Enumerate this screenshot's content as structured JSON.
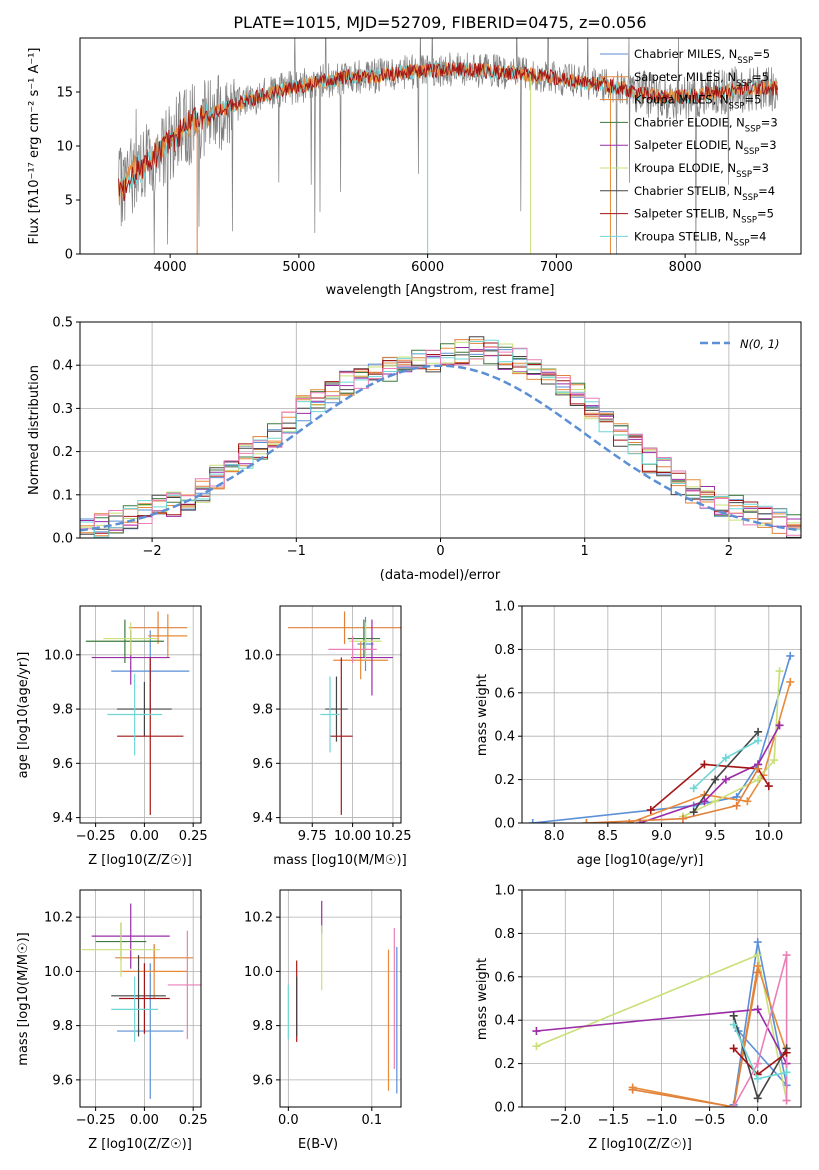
{
  "colors": {
    "Chabrier MILES": "#5b8fd6",
    "Salpeter MILES": "#e78b3a",
    "Kroupa MILES": "#e0803a",
    "Chabrier ELODIE": "#3d7a3d",
    "Salpeter ELODIE": "#9a2ca8",
    "Kroupa ELODIE": "#c9e079",
    "Chabrier STELIB": "#444444",
    "Salpeter STELIB": "#a31515",
    "Kroupa STELIB": "#6fd6d6",
    "data": "#808080",
    "gauss": "#5b8fd6",
    "pink": "#ea7fb8"
  },
  "chart_data": [
    {
      "id": "spectrum",
      "type": "line",
      "title": "PLATE=1015, MJD=52709, FIBERID=0475, z=0.056",
      "xlabel": "wavelength [Angstrom, rest frame]",
      "ylabel": "Flux [fλ10⁻¹⁷ erg cm⁻² s⁻¹ A⁻¹]",
      "xlim": [
        3300,
        8900
      ],
      "ylim": [
        0,
        20
      ],
      "xticks": [
        4000,
        5000,
        6000,
        7000,
        8000
      ],
      "yticks": [
        0,
        5,
        10,
        15
      ],
      "xticklabels": [
        "4000",
        "5000",
        "6000",
        "7000",
        "8000"
      ],
      "yticklabels": [
        "0",
        "5",
        "10",
        "15"
      ],
      "continuum": [
        [
          3600,
          5.8
        ],
        [
          3700,
          7.5
        ],
        [
          3800,
          8.2
        ],
        [
          3900,
          9.2
        ],
        [
          4000,
          10.5
        ],
        [
          4100,
          11.6
        ],
        [
          4200,
          12.4
        ],
        [
          4300,
          12.8
        ],
        [
          4400,
          13.4
        ],
        [
          4500,
          13.8
        ],
        [
          4600,
          14.3
        ],
        [
          4700,
          14.6
        ],
        [
          4800,
          15.0
        ],
        [
          4900,
          15.3
        ],
        [
          5000,
          15.5
        ],
        [
          5200,
          16.0
        ],
        [
          5400,
          16.4
        ],
        [
          5600,
          16.5
        ],
        [
          5800,
          16.8
        ],
        [
          6000,
          17.0
        ],
        [
          6200,
          17.1
        ],
        [
          6400,
          17.0
        ],
        [
          6600,
          16.8
        ],
        [
          6800,
          16.6
        ],
        [
          7000,
          16.3
        ],
        [
          7200,
          15.9
        ],
        [
          7400,
          15.6
        ],
        [
          7600,
          15.1
        ],
        [
          7800,
          14.5
        ],
        [
          8000,
          14.6
        ],
        [
          8200,
          14.9
        ],
        [
          8400,
          15.2
        ],
        [
          8600,
          15.4
        ],
        [
          8720,
          15.3
        ]
      ],
      "legend": [
        {
          "name": "Chabrier MILES",
          "suffix": "5"
        },
        {
          "name": "Salpeter MILES",
          "suffix": "5"
        },
        {
          "name": "Kroupa MILES",
          "suffix": "5"
        },
        {
          "name": "Chabrier ELODIE",
          "suffix": "3"
        },
        {
          "name": "Salpeter ELODIE",
          "suffix": "3"
        },
        {
          "name": "Kroupa ELODIE",
          "suffix": "3"
        },
        {
          "name": "Chabrier STELIB",
          "suffix": "4"
        },
        {
          "name": "Salpeter STELIB",
          "suffix": "5"
        },
        {
          "name": "Kroupa STELIB",
          "suffix": "4"
        }
      ]
    },
    {
      "id": "residuals",
      "type": "line",
      "xlabel": "(data-model)/error",
      "ylabel": "Normed distribution",
      "xlim": [
        -2.5,
        2.5
      ],
      "ylim": [
        0,
        0.5
      ],
      "xticks": [
        -2,
        -1,
        0,
        1,
        2
      ],
      "yticks": [
        0.0,
        0.1,
        0.2,
        0.3,
        0.4,
        0.5
      ],
      "xticklabels": [
        "−2",
        "−1",
        "0",
        "1",
        "2"
      ],
      "yticklabels": [
        "0.0",
        "0.1",
        "0.2",
        "0.3",
        "0.4",
        "0.5"
      ],
      "gauss_label": "N(0, 1)",
      "bin_width": 0.1,
      "bins_x0": -2.5,
      "hist": [
        0.02,
        0.03,
        0.04,
        0.05,
        0.06,
        0.07,
        0.08,
        0.09,
        0.11,
        0.14,
        0.16,
        0.19,
        0.21,
        0.24,
        0.27,
        0.3,
        0.32,
        0.34,
        0.36,
        0.37,
        0.38,
        0.39,
        0.4,
        0.41,
        0.41,
        0.42,
        0.43,
        0.44,
        0.43,
        0.42,
        0.41,
        0.39,
        0.37,
        0.35,
        0.33,
        0.3,
        0.27,
        0.24,
        0.21,
        0.18,
        0.16,
        0.13,
        0.11,
        0.09,
        0.08,
        0.07,
        0.06,
        0.05,
        0.04,
        0.03
      ]
    },
    {
      "id": "age-metal",
      "type": "scatter",
      "xlabel": "Z [log10(Z/Z☉)]",
      "ylabel": "age [log10(age/yr)]",
      "xlim": [
        -0.33,
        0.29
      ],
      "ylim": [
        9.38,
        10.18
      ],
      "xticks": [
        -0.25,
        0.0,
        0.25
      ],
      "yticks": [
        9.4,
        9.6,
        9.8,
        10.0
      ],
      "xticklabels": [
        "−0.25",
        "0.00",
        "0.25"
      ],
      "yticklabels": [
        "9.4",
        "9.6",
        "9.8",
        "10.0"
      ],
      "points": [
        {
          "c": "Chabrier MILES",
          "x": 0.03,
          "xe": 0.2,
          "y": 9.94,
          "ye": 0.15
        },
        {
          "c": "Salpeter MILES",
          "x": 0.12,
          "xe": 0.1,
          "y": 10.07,
          "ye": 0.08
        },
        {
          "c": "Kroupa MILES",
          "x": 0.07,
          "xe": 0.15,
          "y": 10.1,
          "ye": 0.06
        },
        {
          "c": "Chabrier ELODIE",
          "x": -0.1,
          "xe": 0.2,
          "y": 10.05,
          "ye": 0.08
        },
        {
          "c": "Salpeter ELODIE",
          "x": -0.07,
          "xe": 0.2,
          "y": 9.99,
          "ye": 0.1
        },
        {
          "c": "Kroupa ELODIE",
          "x": -0.07,
          "xe": 0.14,
          "y": 10.06,
          "ye": 0.06
        },
        {
          "c": "Chabrier STELIB",
          "x": 0.0,
          "xe": 0.14,
          "y": 9.8,
          "ye": 0.1
        },
        {
          "c": "Salpeter STELIB",
          "x": 0.03,
          "xe": 0.17,
          "y": 9.7,
          "ye": 0.29
        },
        {
          "c": "Kroupa STELIB",
          "x": -0.05,
          "xe": 0.14,
          "y": 9.78,
          "ye": 0.15
        }
      ]
    },
    {
      "id": "age-mass",
      "type": "scatter",
      "xlabel": "mass [log10(M/M☉)]",
      "ylabel": "",
      "xlim": [
        9.55,
        10.3
      ],
      "ylim": [
        9.38,
        10.18
      ],
      "xticks": [
        9.75,
        10.0,
        10.25
      ],
      "yticks": [
        9.4,
        9.6,
        9.8,
        10.0
      ],
      "xticklabels": [
        "9.75",
        "10.00",
        "10.25"
      ],
      "yticklabels": [
        "9.4",
        "9.6",
        "9.8",
        "10.0"
      ],
      "points": [
        {
          "c": "Chabrier MILES",
          "x": 10.08,
          "xe": 0.05,
          "y": 10.04,
          "ye": 0.1
        },
        {
          "c": "Salpeter MILES",
          "x": 10.05,
          "xe": 0.17,
          "y": 9.98,
          "ye": 0.07
        },
        {
          "c": "Kroupa MILES",
          "x": 9.95,
          "xe": 0.35,
          "y": 10.1,
          "ye": 0.06
        },
        {
          "c": "Chabrier ELODIE",
          "x": 10.07,
          "xe": 0.1,
          "y": 10.06,
          "ye": 0.07
        },
        {
          "c": "Salpeter ELODIE",
          "x": 10.12,
          "xe": 0.13,
          "y": 9.99,
          "ye": 0.14
        },
        {
          "c": "Kroupa ELODIE",
          "x": 10.08,
          "xe": 0.1,
          "y": 10.05,
          "ye": 0.07
        },
        {
          "c": "Chabrier STELIB",
          "x": 9.9,
          "xe": 0.07,
          "y": 9.8,
          "ye": 0.12
        },
        {
          "c": "Salpeter STELIB",
          "x": 9.93,
          "xe": 0.07,
          "y": 9.7,
          "ye": 0.29
        },
        {
          "c": "Kroupa STELIB",
          "x": 9.86,
          "xe": 0.06,
          "y": 9.78,
          "ye": 0.14
        },
        {
          "c": "pink",
          "x": 10.0,
          "xe": 0.15,
          "y": 10.02,
          "ye": 0.05
        }
      ]
    },
    {
      "id": "mw-age",
      "type": "line",
      "xlabel": "age [log10(age/yr)]",
      "ylabel": "mass weight",
      "xlim": [
        7.7,
        10.3
      ],
      "ylim": [
        0.0,
        1.0
      ],
      "xticks": [
        8.0,
        8.5,
        9.0,
        9.5,
        10.0
      ],
      "yticks": [
        0.0,
        0.2,
        0.4,
        0.6,
        0.8,
        1.0
      ],
      "xticklabels": [
        "8.0",
        "8.5",
        "9.0",
        "9.5",
        "10.0"
      ],
      "yticklabels": [
        "0.0",
        "0.2",
        "0.4",
        "0.6",
        "0.8",
        "1.0"
      ],
      "series": [
        {
          "c": "Chabrier MILES",
          "x": [
            7.8,
            9.3,
            9.7,
            9.9,
            10.2
          ],
          "y": [
            0.0,
            0.08,
            0.12,
            0.27,
            0.77
          ]
        },
        {
          "c": "Salpeter MILES",
          "x": [
            8.7,
            9.4,
            9.8,
            9.95,
            10.2
          ],
          "y": [
            0.0,
            0.13,
            0.1,
            0.22,
            0.65
          ]
        },
        {
          "c": "Kroupa ELODIE",
          "x": [
            9.2,
            9.5,
            9.9,
            10.05,
            10.1
          ],
          "y": [
            0.03,
            0.1,
            0.2,
            0.29,
            0.7
          ]
        },
        {
          "c": "Salpeter ELODIE",
          "x": [
            8.8,
            9.4,
            9.6,
            9.9,
            10.1
          ],
          "y": [
            0.0,
            0.1,
            0.2,
            0.27,
            0.45
          ]
        },
        {
          "c": "Salpeter STELIB",
          "x": [
            8.9,
            9.4,
            9.9,
            10.0
          ],
          "y": [
            0.06,
            0.27,
            0.25,
            0.17
          ]
        },
        {
          "c": "Chabrier STELIB",
          "x": [
            9.3,
            9.5,
            9.9
          ],
          "y": [
            0.05,
            0.2,
            0.42
          ]
        },
        {
          "c": "Kroupa STELIB",
          "x": [
            9.3,
            9.6,
            9.9
          ],
          "y": [
            0.16,
            0.3,
            0.38
          ]
        },
        {
          "c": "Kroupa MILES",
          "x": [
            8.3,
            9.2,
            9.7,
            9.9
          ],
          "y": [
            0.0,
            0.02,
            0.08,
            0.25
          ]
        }
      ]
    },
    {
      "id": "mass-metal",
      "type": "scatter",
      "xlabel": "Z [log10(Z/Z☉)]",
      "ylabel": "mass [log10(M/M☉)]",
      "xlim": [
        -0.33,
        0.29
      ],
      "ylim": [
        9.5,
        10.3
      ],
      "xticks": [
        -0.25,
        0.0,
        0.25
      ],
      "yticks": [
        9.6,
        9.8,
        10.0,
        10.2
      ],
      "xticklabels": [
        "−0.25",
        "0.00",
        "0.25"
      ],
      "yticklabels": [
        "9.6",
        "9.8",
        "10.0",
        "10.2"
      ],
      "points": [
        {
          "c": "Chabrier MILES",
          "x": 0.03,
          "xe": 0.17,
          "y": 9.78,
          "ye": 0.25
        },
        {
          "c": "Salpeter MILES",
          "x": 0.05,
          "xe": 0.17,
          "y": 10.0,
          "ye": 0.1
        },
        {
          "c": "Kroupa MILES",
          "x": 0.05,
          "xe": 0.2,
          "y": 10.05,
          "ye": 0.05
        },
        {
          "c": "Chabrier ELODIE",
          "x": -0.12,
          "xe": 0.13,
          "y": 10.11,
          "ye": 0.07
        },
        {
          "c": "Salpeter ELODIE",
          "x": -0.07,
          "xe": 0.2,
          "y": 10.13,
          "ye": 0.12
        },
        {
          "c": "Kroupa ELODIE",
          "x": -0.12,
          "xe": 0.2,
          "y": 10.08,
          "ye": 0.1
        },
        {
          "c": "Chabrier STELIB",
          "x": -0.03,
          "xe": 0.14,
          "y": 9.91,
          "ye": 0.15
        },
        {
          "c": "Salpeter STELIB",
          "x": 0.0,
          "xe": 0.13,
          "y": 9.9,
          "ye": 0.13
        },
        {
          "c": "Kroupa STELIB",
          "x": -0.05,
          "xe": 0.12,
          "y": 9.86,
          "ye": 0.12
        },
        {
          "c": "pink",
          "x": 0.22,
          "xe": 0.1,
          "y": 9.95,
          "ye": 0.2
        }
      ]
    },
    {
      "id": "mass-ebv",
      "type": "scatter",
      "xlabel": "E(B-V)",
      "ylabel": "",
      "xlim": [
        -0.01,
        0.135
      ],
      "ylim": [
        9.5,
        10.3
      ],
      "xticks": [
        0.0,
        0.1
      ],
      "yticks": [
        9.6,
        9.8,
        10.0,
        10.2
      ],
      "xticklabels": [
        "0.0",
        "0.1"
      ],
      "yticklabels": [
        "9.6",
        "9.8",
        "10.0",
        "10.2"
      ],
      "points": [
        {
          "c": "Chabrier MILES",
          "x": 0.13,
          "y": 9.82,
          "ye": 0.27
        },
        {
          "c": "Salpeter MILES",
          "x": 0.12,
          "y": 9.82,
          "ye": 0.26
        },
        {
          "c": "pink",
          "x": 0.127,
          "y": 9.9,
          "ye": 0.26
        },
        {
          "c": "Salpeter ELODIE",
          "x": 0.04,
          "y": 10.2,
          "ye": 0.06
        },
        {
          "c": "Kroupa ELODIE",
          "x": 0.04,
          "y": 10.05,
          "ye": 0.12
        },
        {
          "c": "Salpeter STELIB",
          "x": 0.01,
          "y": 9.89,
          "ye": 0.15
        },
        {
          "c": "Chabrier STELIB",
          "x": 0.01,
          "y": 9.87,
          "ye": 0.11
        },
        {
          "c": "Kroupa STELIB",
          "x": 0.0,
          "y": 9.85,
          "ye": 0.1
        }
      ]
    },
    {
      "id": "mw-metal",
      "type": "line",
      "xlabel": "Z [log10(Z/Z☉)]",
      "ylabel": "mass weight",
      "xlim": [
        -2.45,
        0.45
      ],
      "ylim": [
        0.0,
        1.0
      ],
      "xticks": [
        -2.0,
        -1.5,
        -1.0,
        -0.5,
        0.0
      ],
      "yticks": [
        0.0,
        0.2,
        0.4,
        0.6,
        0.8,
        1.0
      ],
      "xticklabels": [
        "−2.0",
        "−1.5",
        "−1.0",
        "−0.5",
        "0.0"
      ],
      "yticklabels": [
        "0.0",
        "0.2",
        "0.4",
        "0.6",
        "0.8",
        "1.0"
      ],
      "series": [
        {
          "c": "Chabrier MILES",
          "x": [
            -0.25,
            0.0,
            0.3,
            -0.2
          ],
          "y": [
            0.01,
            0.76,
            0.1,
            0.35
          ]
        },
        {
          "c": "Kroupa ELODIE",
          "x": [
            -2.3,
            0.0,
            0.3
          ],
          "y": [
            0.28,
            0.7,
            0.03
          ]
        },
        {
          "c": "Salpeter ELODIE",
          "x": [
            -2.3,
            0.0,
            0.3
          ],
          "y": [
            0.35,
            0.45,
            0.2
          ]
        },
        {
          "c": "Salpeter MILES",
          "x": [
            -1.3,
            -0.25,
            0.0,
            0.3
          ],
          "y": [
            0.09,
            0.0,
            0.65,
            0.25
          ]
        },
        {
          "c": "Kroupa MILES",
          "x": [
            -1.3,
            -0.25,
            0.0
          ],
          "y": [
            0.08,
            0.0,
            0.62
          ]
        },
        {
          "c": "pink",
          "x": [
            -0.25,
            0.0,
            0.3,
            0.3
          ],
          "y": [
            0.0,
            0.2,
            0.7,
            0.03
          ]
        },
        {
          "c": "Chabrier STELIB",
          "x": [
            -0.25,
            0.0,
            0.3
          ],
          "y": [
            0.42,
            0.04,
            0.27
          ]
        },
        {
          "c": "Salpeter STELIB",
          "x": [
            -0.25,
            0.0,
            0.3
          ],
          "y": [
            0.27,
            0.15,
            0.25
          ]
        },
        {
          "c": "Kroupa STELIB",
          "x": [
            -0.25,
            0.0,
            0.3
          ],
          "y": [
            0.38,
            0.13,
            0.16
          ]
        }
      ]
    }
  ]
}
